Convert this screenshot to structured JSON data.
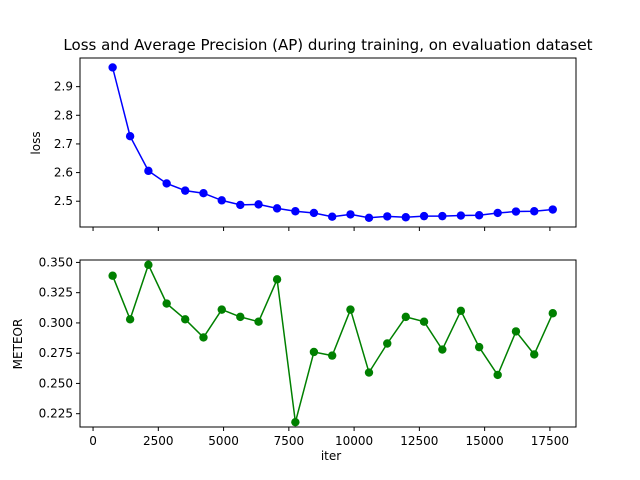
{
  "chart_data": [
    {
      "type": "line",
      "title": "Loss and Average Precision (AP) during training, on evaluation dataset",
      "xlabel": "",
      "ylabel": "loss",
      "xlim": [
        -500,
        18500
      ],
      "ylim": [
        2.41,
        3.0
      ],
      "yticks": [
        "2.5",
        "2.6",
        "2.7",
        "2.8",
        "2.9"
      ],
      "xticks": [
        "",
        "",
        "",
        "",
        "",
        "",
        "",
        ""
      ],
      "color": "#0000ff",
      "marker": "circle",
      "grid": false,
      "series": [
        {
          "x": [
            750,
            1420,
            2120,
            2820,
            3530,
            4230,
            4930,
            5640,
            6340,
            7050,
            7750,
            8460,
            9160,
            9860,
            10570,
            11270,
            11980,
            12680,
            13380,
            14090,
            14790,
            15500,
            16200,
            16900,
            17610
          ],
          "values": [
            2.967,
            2.727,
            2.606,
            2.562,
            2.537,
            2.528,
            2.503,
            2.487,
            2.489,
            2.475,
            2.465,
            2.459,
            2.446,
            2.454,
            2.442,
            2.447,
            2.444,
            2.448,
            2.448,
            2.45,
            2.451,
            2.459,
            2.464,
            2.465,
            2.471
          ]
        }
      ]
    },
    {
      "type": "line",
      "title": "",
      "xlabel": "iter",
      "ylabel": "METEOR",
      "xlim": [
        -500,
        18500
      ],
      "ylim": [
        0.214,
        0.352
      ],
      "yticks": [
        "0.225",
        "0.250",
        "0.275",
        "0.300",
        "0.325",
        "0.350"
      ],
      "xticks": [
        "0",
        "2500",
        "5000",
        "7500",
        "10000",
        "12500",
        "15000",
        "17500"
      ],
      "color": "#008000",
      "marker": "circle",
      "grid": false,
      "series": [
        {
          "x": [
            750,
            1420,
            2120,
            2820,
            3530,
            4230,
            4930,
            5640,
            6340,
            7050,
            7750,
            8460,
            9160,
            9860,
            10570,
            11270,
            11980,
            12680,
            13380,
            14090,
            14790,
            15500,
            16200,
            16900,
            17610
          ],
          "values": [
            0.339,
            0.303,
            0.348,
            0.316,
            0.303,
            0.288,
            0.311,
            0.305,
            0.301,
            0.336,
            0.218,
            0.276,
            0.273,
            0.311,
            0.259,
            0.283,
            0.305,
            0.301,
            0.278,
            0.31,
            0.28,
            0.257,
            0.293,
            0.274,
            0.308
          ]
        }
      ]
    }
  ]
}
